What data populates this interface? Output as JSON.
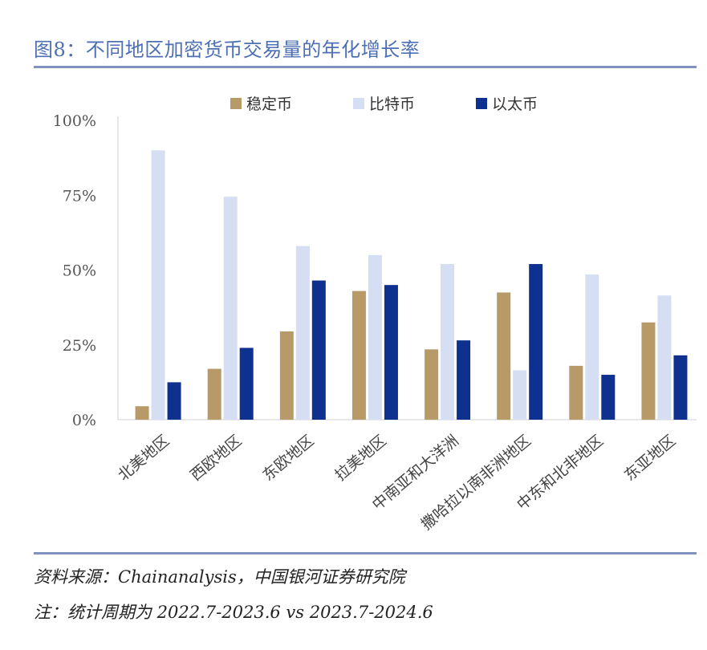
{
  "header": {
    "title": "图8：不同地区加密货币交易量的年化增长率"
  },
  "footer": {
    "source": "资料来源：Chainanalysis，中国银河证券研究院",
    "note": "注：统计周期为 2022.7-2023.6 vs 2023.7-2024.6"
  },
  "chart_data": {
    "type": "bar",
    "categories": [
      "北美地区",
      "西欧地区",
      "东欧地区",
      "拉美地区",
      "中南亚和大洋洲",
      "撒哈拉以南非洲地区",
      "中东和北非地区",
      "东亚地区"
    ],
    "series": [
      {
        "name": "稳定币",
        "color": "#b89a68",
        "values": [
          4.5,
          17,
          29.5,
          43,
          23.5,
          42.5,
          18,
          32.5
        ]
      },
      {
        "name": "比特币",
        "color": "#d5def2",
        "values": [
          90,
          74.5,
          58,
          55,
          52,
          16.5,
          48.5,
          41.5
        ]
      },
      {
        "name": "以太币",
        "color": "#0e318f",
        "values": [
          12.5,
          24,
          46.5,
          45,
          26.5,
          52,
          15,
          21.5
        ]
      }
    ],
    "yticks": [
      "0%",
      "25%",
      "50%",
      "75%",
      "100%"
    ],
    "ylim": [
      0,
      100
    ],
    "legend": "top-center",
    "grid": false
  }
}
